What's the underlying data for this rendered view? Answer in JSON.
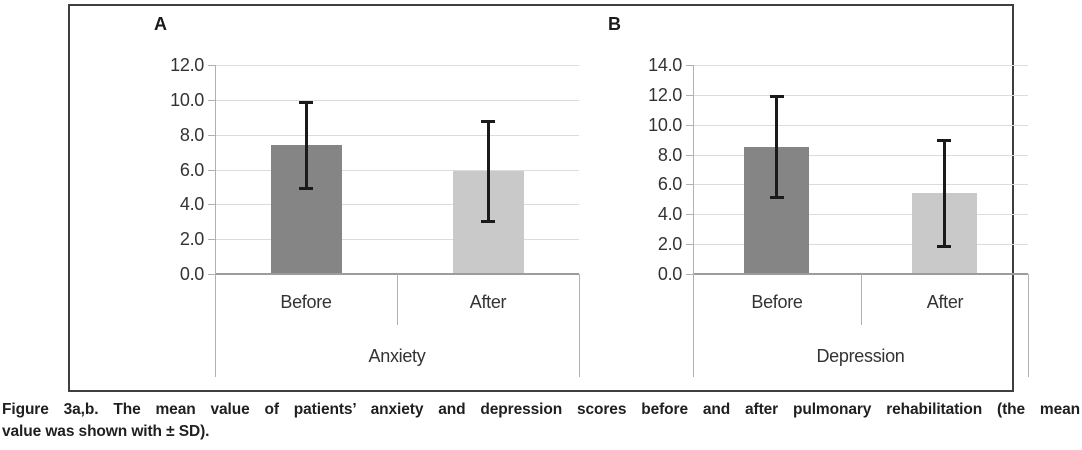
{
  "figure": {
    "caption": "Figure 3a,b. The mean value of patients' anxiety and depression scores before and after pulmonary rehabilitation (the mean value was shown with ± SD).",
    "caption_lines": [
      "Figure 3a,b. The mean value of patients’ anxiety and depression scores before and after pulmonary rehabilitation (the mean",
      "value was shown with ± SD)."
    ]
  },
  "chart_data": [
    {
      "type": "bar",
      "panel_label": "A",
      "group_label": "Anxiety",
      "categories": [
        "Before",
        "After"
      ],
      "values": [
        7.4,
        5.9
      ],
      "sd": [
        2.5,
        2.9
      ],
      "error_bars": "mean ± SD",
      "ylim": [
        0,
        12
      ],
      "ytick_step": 2,
      "ytick_labels": [
        "0.0",
        "2.0",
        "4.0",
        "6.0",
        "8.0",
        "10.0",
        "12.0"
      ],
      "bar_colors": [
        "#858585",
        "#c9c9c9"
      ],
      "grid": true,
      "legend": "none"
    },
    {
      "type": "bar",
      "panel_label": "B",
      "group_label": "Depression",
      "categories": [
        "Before",
        "After"
      ],
      "values": [
        8.5,
        5.4
      ],
      "sd": [
        3.4,
        3.6
      ],
      "error_bars": "mean ± SD",
      "ylim": [
        0,
        14
      ],
      "ytick_step": 2,
      "ytick_labels": [
        "0.0",
        "2.0",
        "4.0",
        "6.0",
        "8.0",
        "10.0",
        "12.0",
        "14.0"
      ],
      "bar_colors": [
        "#858585",
        "#c9c9c9"
      ],
      "grid": true,
      "legend": "none"
    }
  ],
  "colors": {
    "bar_before": "#858585",
    "bar_after": "#c9c9c9",
    "gridline": "#dcdcdc",
    "axis": "#b0b0b0",
    "zero_line": "#9c9c9c",
    "error_bar": "#1a1a1a",
    "text": "#333333",
    "frame_border": "#3f3f3f"
  }
}
